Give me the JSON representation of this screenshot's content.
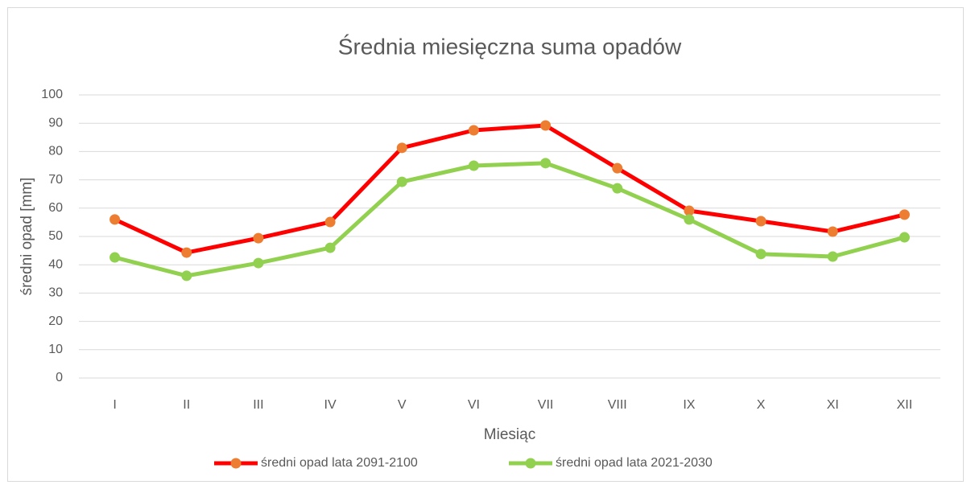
{
  "chart_data": {
    "type": "line",
    "title": "Średnia miesięczna suma opadów",
    "x_label": "Miesiąc",
    "y_label": "średni opad [mm]",
    "categories": [
      "I",
      "II",
      "III",
      "IV",
      "V",
      "VI",
      "VII",
      "VIII",
      "IX",
      "X",
      "XI",
      "XII"
    ],
    "series": [
      {
        "name": "średni opad lata 2091-2100",
        "color": "#ff0000",
        "marker_color": "#ed7d31",
        "values": [
          56.0,
          44.3,
          49.4,
          55.1,
          81.3,
          87.5,
          89.2,
          74.1,
          59.1,
          55.4,
          51.7,
          57.7
        ]
      },
      {
        "name": "średni opad lata 2021-2030",
        "color": "#92d050",
        "marker_color": "#92d050",
        "values": [
          42.6,
          36.1,
          40.6,
          46.0,
          69.3,
          75.0,
          75.9,
          67.0,
          56.0,
          43.8,
          42.9,
          49.7
        ]
      }
    ],
    "ylim": [
      0,
      100
    ],
    "yticks": [
      0,
      10,
      20,
      30,
      40,
      50,
      60,
      70,
      80,
      90,
      100
    ],
    "grid": true,
    "legend": "bottom"
  }
}
